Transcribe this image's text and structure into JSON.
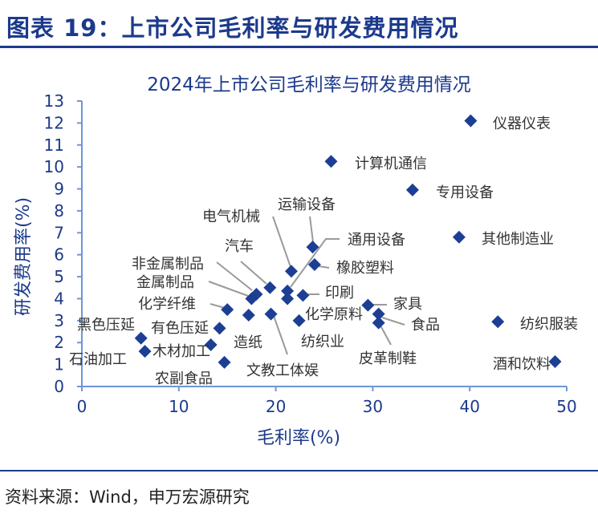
{
  "header": {
    "title": "图表 19：上市公司毛利率与研发费用情况"
  },
  "footer": {
    "source": "资料来源：Wind，申万宏源研究"
  },
  "chart_data": {
    "type": "scatter",
    "title": "2024年上市公司毛利率与研发费用情况",
    "xlabel": "毛利率(%)",
    "ylabel": "研发费用率(%)",
    "xlim": [
      0,
      50
    ],
    "ylim": [
      0,
      13
    ],
    "xticks": [
      0,
      10,
      20,
      30,
      40,
      50
    ],
    "yticks": [
      0,
      1,
      2,
      3,
      4,
      5,
      6,
      7,
      8,
      9,
      10,
      11,
      12,
      13
    ],
    "grid": false,
    "marker": "diamond",
    "color": "#1c3f94",
    "points": [
      {
        "label": "仪器仪表",
        "x": 40.1,
        "y": 12.1
      },
      {
        "label": "计算机通信",
        "x": 25.7,
        "y": 10.25
      },
      {
        "label": "专用设备",
        "x": 34.1,
        "y": 8.95
      },
      {
        "label": "其他制造业",
        "x": 38.9,
        "y": 6.8
      },
      {
        "label": "纺织服装",
        "x": 42.9,
        "y": 2.95
      },
      {
        "label": "酒和饮料",
        "x": 48.8,
        "y": 1.13
      },
      {
        "label": "运输设备",
        "x": 23.8,
        "y": 6.35
      },
      {
        "label": "电气机械",
        "x": 21.6,
        "y": 5.25
      },
      {
        "label": "通用设备",
        "x": 21.2,
        "y": 4.35
      },
      {
        "label": "橡胶塑料",
        "x": 24.0,
        "y": 5.55
      },
      {
        "label": "汽车",
        "x": 19.4,
        "y": 4.5
      },
      {
        "label": "非金属制品",
        "x": 18.0,
        "y": 4.2
      },
      {
        "label": "金属制品",
        "x": 17.5,
        "y": 4.0
      },
      {
        "label": "印刷",
        "x": 22.8,
        "y": 4.15
      },
      {
        "label": "化学原料",
        "x": 21.2,
        "y": 4.0
      },
      {
        "label": "纺织业",
        "x": 22.4,
        "y": 3.0
      },
      {
        "label": "文教工体娱",
        "x": 19.5,
        "y": 3.3
      },
      {
        "label": "造纸",
        "x": 17.2,
        "y": 3.25
      },
      {
        "label": "化学纤维",
        "x": 15.0,
        "y": 3.5
      },
      {
        "label": "有色压延",
        "x": 14.2,
        "y": 2.65
      },
      {
        "label": "黑色压延",
        "x": 6.1,
        "y": 2.2
      },
      {
        "label": "石油加工",
        "x": 6.5,
        "y": 1.6
      },
      {
        "label": "木材加工",
        "x": 13.3,
        "y": 1.9
      },
      {
        "label": "农副食品",
        "x": 14.7,
        "y": 1.1
      },
      {
        "label": "家具",
        "x": 29.5,
        "y": 3.7
      },
      {
        "label": "食品",
        "x": 30.6,
        "y": 3.3
      },
      {
        "label": "皮革制鞋",
        "x": 30.6,
        "y": 2.9
      }
    ]
  }
}
